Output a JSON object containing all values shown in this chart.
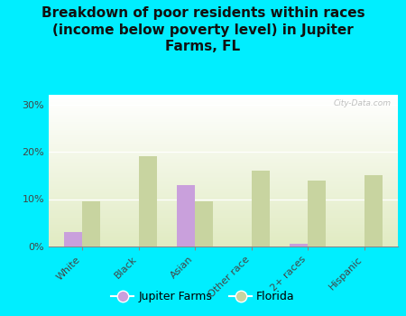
{
  "categories": [
    "White",
    "Black",
    "Asian",
    "Other race",
    "2+ races",
    "Hispanic"
  ],
  "jupiter_farms": [
    3.0,
    0.0,
    13.0,
    0.0,
    0.5,
    0.0
  ],
  "florida": [
    9.5,
    19.0,
    9.5,
    16.0,
    14.0,
    15.0
  ],
  "jupiter_color": "#c9a0dc",
  "florida_color": "#c8d4a0",
  "title": "Breakdown of poor residents within races\n(income below poverty level) in Jupiter\nFarms, FL",
  "title_fontsize": 11,
  "background_outer": "#00eeff",
  "ylabel_ticks": [
    "0%",
    "10%",
    "20%",
    "30%"
  ],
  "ytick_vals": [
    0,
    10,
    20,
    30
  ],
  "ylim": [
    0,
    32
  ],
  "watermark": "City-Data.com",
  "legend_jupiter": "Jupiter Farms",
  "legend_florida": "Florida",
  "bar_width": 0.32
}
